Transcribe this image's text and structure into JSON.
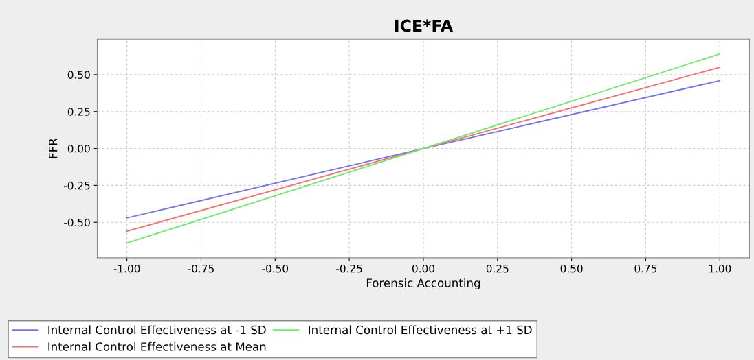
{
  "chart_data": {
    "type": "line",
    "title": "ICE*FA",
    "xlabel": "Forensic Accounting",
    "ylabel": "FFR",
    "x": [
      -1.0,
      0.0,
      1.0
    ],
    "series": [
      {
        "name": "Internal Control Effectiveness at -1 SD",
        "color": "#7070ff",
        "values": [
          -0.47,
          0.0,
          0.46
        ]
      },
      {
        "name": "Internal Control Effectiveness at Mean",
        "color": "#ff6b6b",
        "values": [
          -0.56,
          0.0,
          0.55
        ]
      },
      {
        "name": "Internal Control Effectiveness at +1 SD",
        "color": "#66ee66",
        "values": [
          -0.64,
          0.0,
          0.64
        ]
      }
    ],
    "xlim": [
      -1.1,
      1.1
    ],
    "ylim": [
      -0.74,
      0.74
    ],
    "xticks": [
      {
        "value": -1.0,
        "label": "-1.00"
      },
      {
        "value": -0.75,
        "label": "-0.75"
      },
      {
        "value": -0.5,
        "label": "-0.50"
      },
      {
        "value": -0.25,
        "label": "-0.25"
      },
      {
        "value": 0.0,
        "label": "0.00"
      },
      {
        "value": 0.25,
        "label": "0.25"
      },
      {
        "value": 0.5,
        "label": "0.50"
      },
      {
        "value": 0.75,
        "label": "0.75"
      },
      {
        "value": 1.0,
        "label": "1.00"
      }
    ],
    "yticks": [
      {
        "value": -0.5,
        "label": "-0.50"
      },
      {
        "value": -0.25,
        "label": "-0.25"
      },
      {
        "value": 0.0,
        "label": "0.00"
      },
      {
        "value": 0.25,
        "label": "0.25"
      },
      {
        "value": 0.5,
        "label": "0.50"
      }
    ],
    "grid": true,
    "legend": "bottom",
    "marker": "none",
    "line_style": "solid"
  }
}
